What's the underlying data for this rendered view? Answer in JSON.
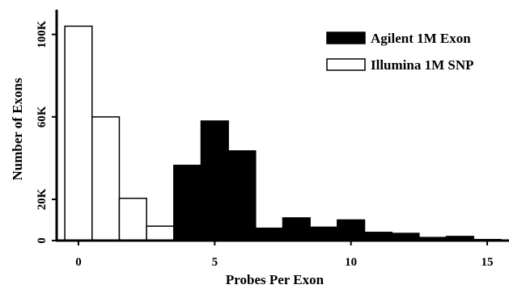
{
  "chart_data": {
    "type": "bar",
    "xlabel": "Probes Per Exon",
    "ylabel": "Number of Exons",
    "x_ticks": [
      {
        "value": 0,
        "label": "0"
      },
      {
        "value": 5,
        "label": "5"
      },
      {
        "value": 10,
        "label": "10"
      },
      {
        "value": 15,
        "label": "15"
      }
    ],
    "y_ticks": [
      {
        "value": 0,
        "label": "0"
      },
      {
        "value": 20000,
        "label": "20K"
      },
      {
        "value": 60000,
        "label": "60K"
      },
      {
        "value": 100000,
        "label": "100K"
      }
    ],
    "xlim": [
      -0.8,
      15.8
    ],
    "ylim": [
      0,
      112000
    ],
    "legend_position": "top-right",
    "series": [
      {
        "name": "Agilent 1M Exon",
        "color": "#000000",
        "fill": "#000000",
        "x": [
          0,
          1,
          2,
          3,
          4,
          5,
          6,
          7,
          8,
          9,
          10,
          11,
          12,
          13,
          14,
          15
        ],
        "values": [
          0,
          0,
          0,
          0,
          36500,
          58000,
          43500,
          6000,
          11000,
          6500,
          10000,
          4000,
          3500,
          1500,
          2000,
          500
        ]
      },
      {
        "name": "Illumina 1M SNP",
        "color": "#000000",
        "fill": "#ffffff",
        "x": [
          0,
          1,
          2,
          3,
          4,
          5,
          6,
          7,
          8,
          9,
          10,
          11,
          12,
          13,
          14,
          15
        ],
        "values": [
          104000,
          60000,
          20500,
          7000,
          2500,
          1000,
          500,
          0,
          0,
          0,
          0,
          0,
          0,
          0,
          0,
          0
        ]
      }
    ]
  }
}
